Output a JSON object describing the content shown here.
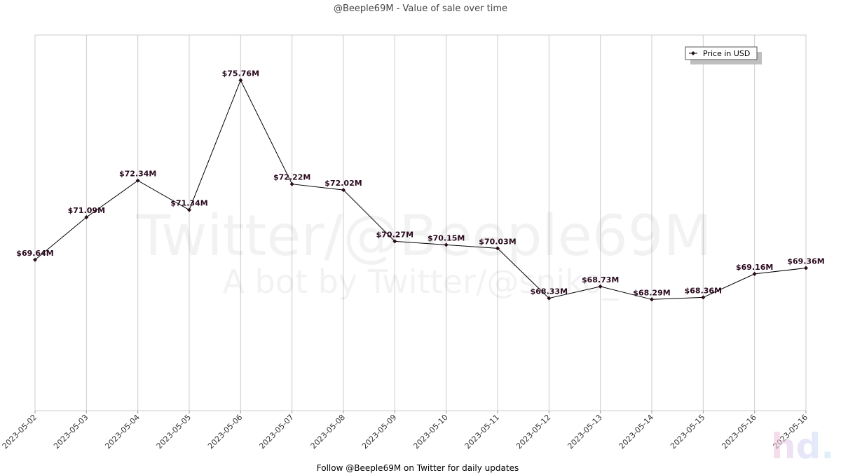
{
  "title": "@Beeple69M - Value of sale over time",
  "footer": "Follow @Beeple69M on Twitter for daily updates",
  "watermark": {
    "line1": "Twitter/@Beeple69M",
    "line2": "A bot by Twitter/@sniko_"
  },
  "logo_text": "hd.",
  "colors": {
    "line": "#000000",
    "marker": "#2a0a1e",
    "grid": "#cccccc",
    "label": "#2a0a1e"
  },
  "chart_data": {
    "type": "line",
    "title": "@Beeple69M - Value of sale over time",
    "xlabel": "",
    "ylabel": "",
    "categories": [
      "2023-05-02",
      "2023-05-03",
      "2023-05-04",
      "2023-05-05",
      "2023-05-06",
      "2023-05-07",
      "2023-05-08",
      "2023-05-09",
      "2023-05-10",
      "2023-05-11",
      "2023-05-12",
      "2023-05-13",
      "2023-05-14",
      "2023-05-15",
      "2023-05-16",
      "2023-05-16"
    ],
    "series": [
      {
        "name": "Price in USD",
        "values": [
          69.64,
          71.09,
          72.34,
          71.34,
          75.76,
          72.22,
          72.02,
          70.27,
          70.15,
          70.03,
          68.33,
          68.73,
          68.29,
          68.36,
          69.16,
          69.36
        ],
        "labels": [
          "$69.64M",
          "$71.09M",
          "$72.34M",
          "$71.34M",
          "$75.76M",
          "$72.22M",
          "$72.02M",
          "$70.27M",
          "$70.15M",
          "$70.03M",
          "$68.33M",
          "$68.73M",
          "$68.29M",
          "$68.36M",
          "$69.16M",
          "$69.36M"
        ]
      }
    ],
    "ylim": [
      64.5,
      77.3
    ],
    "grid": "vertical",
    "legend_position": "top-right"
  }
}
